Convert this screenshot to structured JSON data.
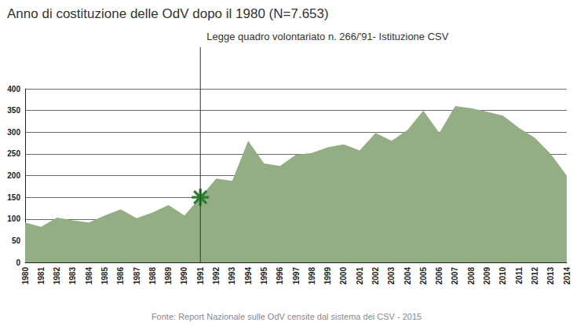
{
  "chart_data": {
    "type": "area",
    "title": "Anno di costituzione delle OdV dopo il 1980 (N=7.653)",
    "source": "Fonte: Report Nazionale sulle OdV censite dal sistema dei CSV - 2015",
    "categories": [
      "1980",
      "1981",
      "1982",
      "1983",
      "1984",
      "1985",
      "1986",
      "1987",
      "1988",
      "1989",
      "1990",
      "1991",
      "1992",
      "1993",
      "1994",
      "1995",
      "1996",
      "1997",
      "1998",
      "1999",
      "2000",
      "2001",
      "2002",
      "2003",
      "2004",
      "2005",
      "2006",
      "2007",
      "2008",
      "2009",
      "2010",
      "2011",
      "2012",
      "2013",
      "2014"
    ],
    "values": [
      92,
      82,
      103,
      97,
      92,
      108,
      122,
      102,
      115,
      132,
      108,
      150,
      193,
      188,
      280,
      228,
      222,
      248,
      252,
      265,
      272,
      258,
      298,
      280,
      305,
      350,
      298,
      360,
      355,
      347,
      338,
      310,
      287,
      250,
      200
    ],
    "color": "#93ae84",
    "ylim": [
      0,
      400
    ],
    "yticks": [
      0,
      50,
      100,
      150,
      200,
      250,
      300,
      350,
      400
    ],
    "grid": true,
    "annotations": [
      {
        "text": "Legge quadro volontariato n. 266/'91- Istituzione CSV",
        "x": "1991",
        "marker": "asterisk"
      }
    ]
  }
}
